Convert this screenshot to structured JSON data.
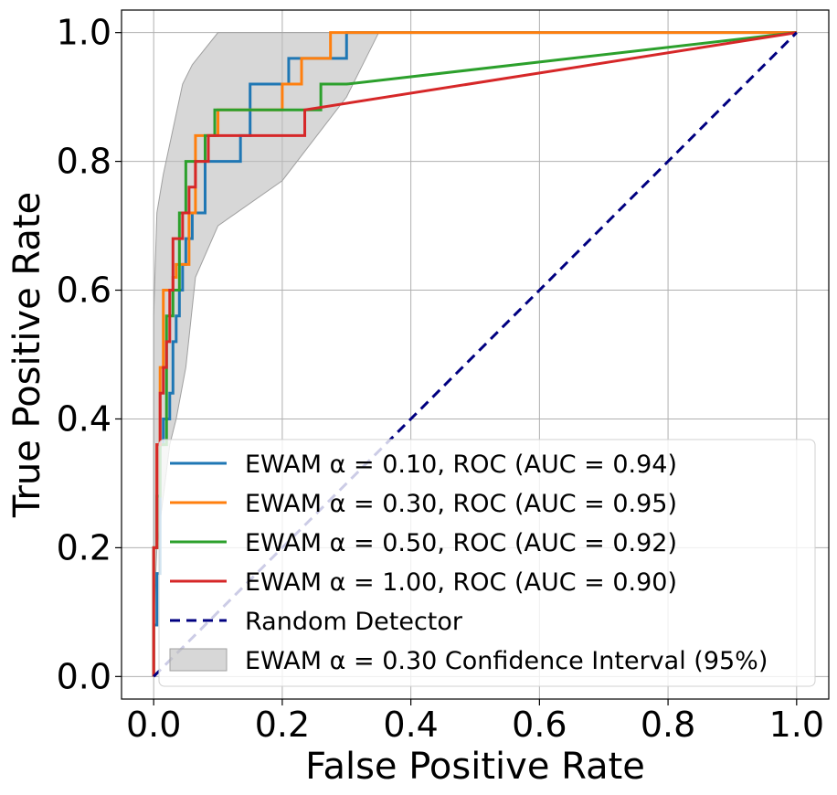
{
  "chart_data": {
    "type": "line",
    "title": "",
    "xlabel": "False Positive Rate",
    "ylabel": "True Positive Rate",
    "xlim": [
      -0.05,
      1.05
    ],
    "ylim": [
      -0.035,
      1.035
    ],
    "xticks": [
      "0.0",
      "0.2",
      "0.4",
      "0.6",
      "0.8",
      "1.0"
    ],
    "yticks": [
      "0.0",
      "0.2",
      "0.4",
      "0.6",
      "0.8",
      "1.0"
    ],
    "grid": true,
    "legend_position": "lower-right",
    "series": [
      {
        "name": "EWAM α = 0.10, ROC (AUC = 0.94)",
        "color": "#1f77b4",
        "style": "solid",
        "x": [
          0,
          0,
          0.005,
          0.005,
          0.01,
          0.01,
          0.015,
          0.015,
          0.02,
          0.02,
          0.025,
          0.025,
          0.03,
          0.03,
          0.035,
          0.035,
          0.04,
          0.04,
          0.045,
          0.045,
          0.05,
          0.05,
          0.055,
          0.055,
          0.06,
          0.06,
          0.07,
          0.07,
          0.08,
          0.08,
          0.135,
          0.135,
          0.15,
          0.15,
          0.19,
          0.19,
          0.21,
          0.21,
          0.25,
          0.25,
          0.3,
          0.3,
          1.0
        ],
        "y": [
          0,
          0.08,
          0.08,
          0.16,
          0.16,
          0.36,
          0.36,
          0.4,
          0.4,
          0.4,
          0.4,
          0.44,
          0.44,
          0.52,
          0.52,
          0.56,
          0.56,
          0.6,
          0.6,
          0.64,
          0.64,
          0.68,
          0.68,
          0.68,
          0.68,
          0.72,
          0.72,
          0.72,
          0.72,
          0.8,
          0.8,
          0.84,
          0.84,
          0.92,
          0.92,
          0.92,
          0.92,
          0.96,
          0.96,
          0.96,
          0.96,
          1.0,
          1.0
        ]
      },
      {
        "name": "EWAM α = 0.30, ROC (AUC = 0.95)",
        "color": "#ff7f0e",
        "style": "solid",
        "x": [
          0,
          0,
          0.005,
          0.005,
          0.01,
          0.01,
          0.015,
          0.015,
          0.025,
          0.025,
          0.03,
          0.03,
          0.035,
          0.035,
          0.045,
          0.045,
          0.05,
          0.05,
          0.055,
          0.055,
          0.065,
          0.065,
          0.08,
          0.08,
          0.1,
          0.1,
          0.2,
          0.2,
          0.23,
          0.23,
          0.275,
          0.275,
          1.0
        ],
        "y": [
          0,
          0.2,
          0.2,
          0.36,
          0.36,
          0.48,
          0.48,
          0.6,
          0.6,
          0.6,
          0.6,
          0.62,
          0.62,
          0.64,
          0.64,
          0.64,
          0.64,
          0.64,
          0.64,
          0.72,
          0.72,
          0.84,
          0.84,
          0.84,
          0.84,
          0.88,
          0.88,
          0.92,
          0.92,
          0.96,
          0.96,
          1.0,
          1.0
        ]
      },
      {
        "name": "EWAM α = 0.50, ROC (AUC = 0.92)",
        "color": "#2ca02c",
        "style": "solid",
        "x": [
          0,
          0,
          0.005,
          0.005,
          0.01,
          0.01,
          0.02,
          0.02,
          0.03,
          0.03,
          0.04,
          0.04,
          0.05,
          0.05,
          0.08,
          0.08,
          0.095,
          0.095,
          0.26,
          0.26,
          0.3,
          1.0
        ],
        "y": [
          0,
          0.2,
          0.2,
          0.28,
          0.28,
          0.36,
          0.36,
          0.56,
          0.56,
          0.6,
          0.6,
          0.72,
          0.72,
          0.8,
          0.8,
          0.84,
          0.84,
          0.88,
          0.88,
          0.92,
          0.92,
          1.0
        ]
      },
      {
        "name": "EWAM α = 1.00, ROC (AUC = 0.90)",
        "color": "#d62728",
        "style": "solid",
        "x": [
          0,
          0,
          0.005,
          0.005,
          0.01,
          0.01,
          0.015,
          0.015,
          0.02,
          0.02,
          0.025,
          0.025,
          0.03,
          0.03,
          0.035,
          0.035,
          0.045,
          0.045,
          0.055,
          0.055,
          0.065,
          0.065,
          0.085,
          0.085,
          0.235,
          0.235,
          1.0
        ],
        "y": [
          0,
          0.2,
          0.2,
          0.36,
          0.36,
          0.44,
          0.44,
          0.48,
          0.48,
          0.52,
          0.52,
          0.6,
          0.6,
          0.68,
          0.68,
          0.68,
          0.68,
          0.72,
          0.72,
          0.76,
          0.76,
          0.8,
          0.8,
          0.84,
          0.84,
          0.88,
          1.0
        ]
      },
      {
        "name": "Random Detector",
        "color": "#000080",
        "style": "dashed",
        "x": [
          0,
          1
        ],
        "y": [
          0,
          1
        ]
      }
    ],
    "band": {
      "name": "EWAM α = 0.30 Confidence Interval (95%)",
      "color": "#bdbdbd",
      "upper": {
        "x": [
          0,
          0.005,
          0.015,
          0.03,
          0.045,
          0.06,
          0.1,
          0.35
        ],
        "y": [
          0.56,
          0.72,
          0.78,
          0.85,
          0.92,
          0.95,
          1.0,
          1.0
        ]
      },
      "lower": {
        "x": [
          0,
          0.005,
          0.015,
          0.025,
          0.035,
          0.05,
          0.065,
          0.1,
          0.2,
          0.3,
          0.35
        ],
        "y": [
          0.08,
          0.2,
          0.28,
          0.36,
          0.4,
          0.48,
          0.62,
          0.7,
          0.77,
          0.9,
          1.0
        ]
      }
    }
  }
}
